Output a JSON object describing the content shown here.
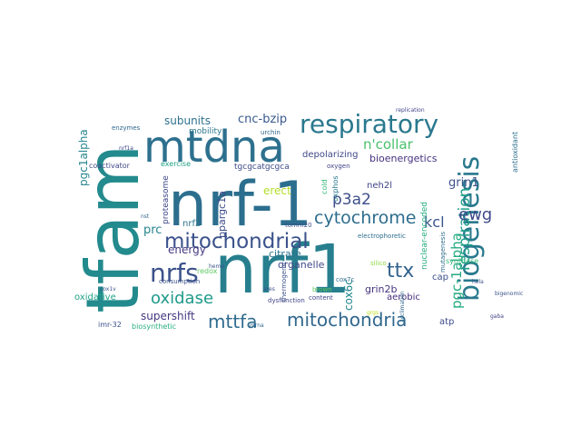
{
  "words": [
    {
      "text": "nrf-1",
      "color": "#2c6e8e"
    },
    {
      "text": "nrf1",
      "color": "#277f8e"
    },
    {
      "text": "tfam",
      "color": "#238a8d"
    },
    {
      "text": "mtdna",
      "color": "#2d708e"
    },
    {
      "text": "respiratory",
      "color": "#2a788e"
    },
    {
      "text": "biogenesis",
      "color": "#29798e"
    },
    {
      "text": "mitochondrial",
      "color": "#3b528b"
    },
    {
      "text": "nrfs",
      "color": "#3b528b"
    },
    {
      "text": "ttx",
      "color": "#33638d"
    },
    {
      "text": "mttfa",
      "color": "#2f6b8e"
    },
    {
      "text": "mitochondria",
      "color": "#31688e"
    },
    {
      "text": "cytochrome",
      "color": "#2e6d8e"
    },
    {
      "text": "oxidase",
      "color": "#1f9a8a"
    },
    {
      "text": "respiration",
      "color": "#1f9e89"
    },
    {
      "text": "pgc-1alpha",
      "color": "#25ab82"
    },
    {
      "text": "ewg",
      "color": "#3e4989"
    },
    {
      "text": "kcl",
      "color": "#3a548c"
    },
    {
      "text": "p3a2",
      "color": "#3d4e8a"
    },
    {
      "text": "n'collar",
      "color": "#4ac16d"
    },
    {
      "text": "cnc-bzip",
      "color": "#38598c"
    },
    {
      "text": "subunits",
      "color": "#2d718e"
    },
    {
      "text": "pgc1alpha",
      "color": "#25858e"
    },
    {
      "text": "supershift",
      "color": "#453882"
    },
    {
      "text": "energy",
      "color": "#453882"
    },
    {
      "text": "prc",
      "color": "#26828e"
    },
    {
      "text": "ppargc1a",
      "color": "#3e4c8a"
    },
    {
      "text": "grin1",
      "color": "#3c4f8a"
    },
    {
      "text": "bioenergetics",
      "color": "#46327e"
    },
    {
      "text": "organelle",
      "color": "#3f4788"
    },
    {
      "text": "cox6c",
      "color": "#23888e"
    },
    {
      "text": "grin2b",
      "color": "#46337e"
    },
    {
      "text": "aerobic",
      "color": "#472e7c"
    },
    {
      "text": "erect",
      "color": "#b5de2b"
    },
    {
      "text": "citrate",
      "color": "#2c728e"
    },
    {
      "text": "nrf2",
      "color": "#2b748e"
    },
    {
      "text": "neh2l",
      "color": "#404387"
    },
    {
      "text": "oxidative",
      "color": "#20a386"
    },
    {
      "text": "depolarizing",
      "color": "#3f4889"
    },
    {
      "text": "tgcgcatgcgca",
      "color": "#3e4a89"
    },
    {
      "text": "atp",
      "color": "#3e4c8a"
    },
    {
      "text": "cap",
      "color": "#3b518b"
    },
    {
      "text": "mobility",
      "color": "#2a768e"
    },
    {
      "text": "proteasome",
      "color": "#3f4788"
    },
    {
      "text": "nuclear-encoded",
      "color": "#25ac82"
    },
    {
      "text": "antioxidant",
      "color": "#2d708e"
    },
    {
      "text": "cold",
      "color": "#34b679"
    },
    {
      "text": "oxphos",
      "color": "#2a768e"
    },
    {
      "text": "synthase",
      "color": "#35b779"
    },
    {
      "text": "mutagenesis",
      "color": "#2e6e8e"
    },
    {
      "text": "content",
      "color": "#414487"
    },
    {
      "text": "dysfunction",
      "color": "#414487"
    },
    {
      "text": "thermogenic",
      "color": "#3b528b"
    },
    {
      "text": "biosynthetic",
      "color": "#29af7f"
    },
    {
      "text": "imr-32",
      "color": "#3b528b"
    },
    {
      "text": "coactivator",
      "color": "#3e4989"
    },
    {
      "text": "consumption",
      "color": "#3b528b"
    },
    {
      "text": "redox",
      "color": "#5ec962"
    },
    {
      "text": "exercise",
      "color": "#20a386"
    },
    {
      "text": "tomm20",
      "color": "#3b528b"
    },
    {
      "text": "electrophoretic",
      "color": "#2e6e8e"
    },
    {
      "text": "brown",
      "color": "#5ec962"
    },
    {
      "text": "enzymes",
      "color": "#31688e"
    },
    {
      "text": "urchin",
      "color": "#31688e"
    },
    {
      "text": "oxygen",
      "color": "#414487"
    },
    {
      "text": "cox7c",
      "color": "#2c728e"
    },
    {
      "text": "nrf1a",
      "color": "#3e4989"
    },
    {
      "text": "heme",
      "color": "#3b528b"
    },
    {
      "text": "ares",
      "color": "#3b528b"
    },
    {
      "text": "cox1v",
      "color": "#3b528b"
    },
    {
      "text": "nst",
      "color": "#31688e"
    },
    {
      "text": "gaba",
      "color": "#414487"
    },
    {
      "text": "acclimation",
      "color": "#31688e"
    },
    {
      "text": "replication",
      "color": "#414487"
    },
    {
      "text": "bigenomic",
      "color": "#3b528b"
    },
    {
      "text": "silico",
      "color": "#90d743"
    },
    {
      "text": "hela",
      "color": "#3b528b"
    },
    {
      "text": "grgs",
      "color": "#c2df23"
    },
    {
      "text": "mrna",
      "color": "#31688e"
    },
    {
      "text": "nrfs",
      "color": "#3b528b"
    }
  ]
}
